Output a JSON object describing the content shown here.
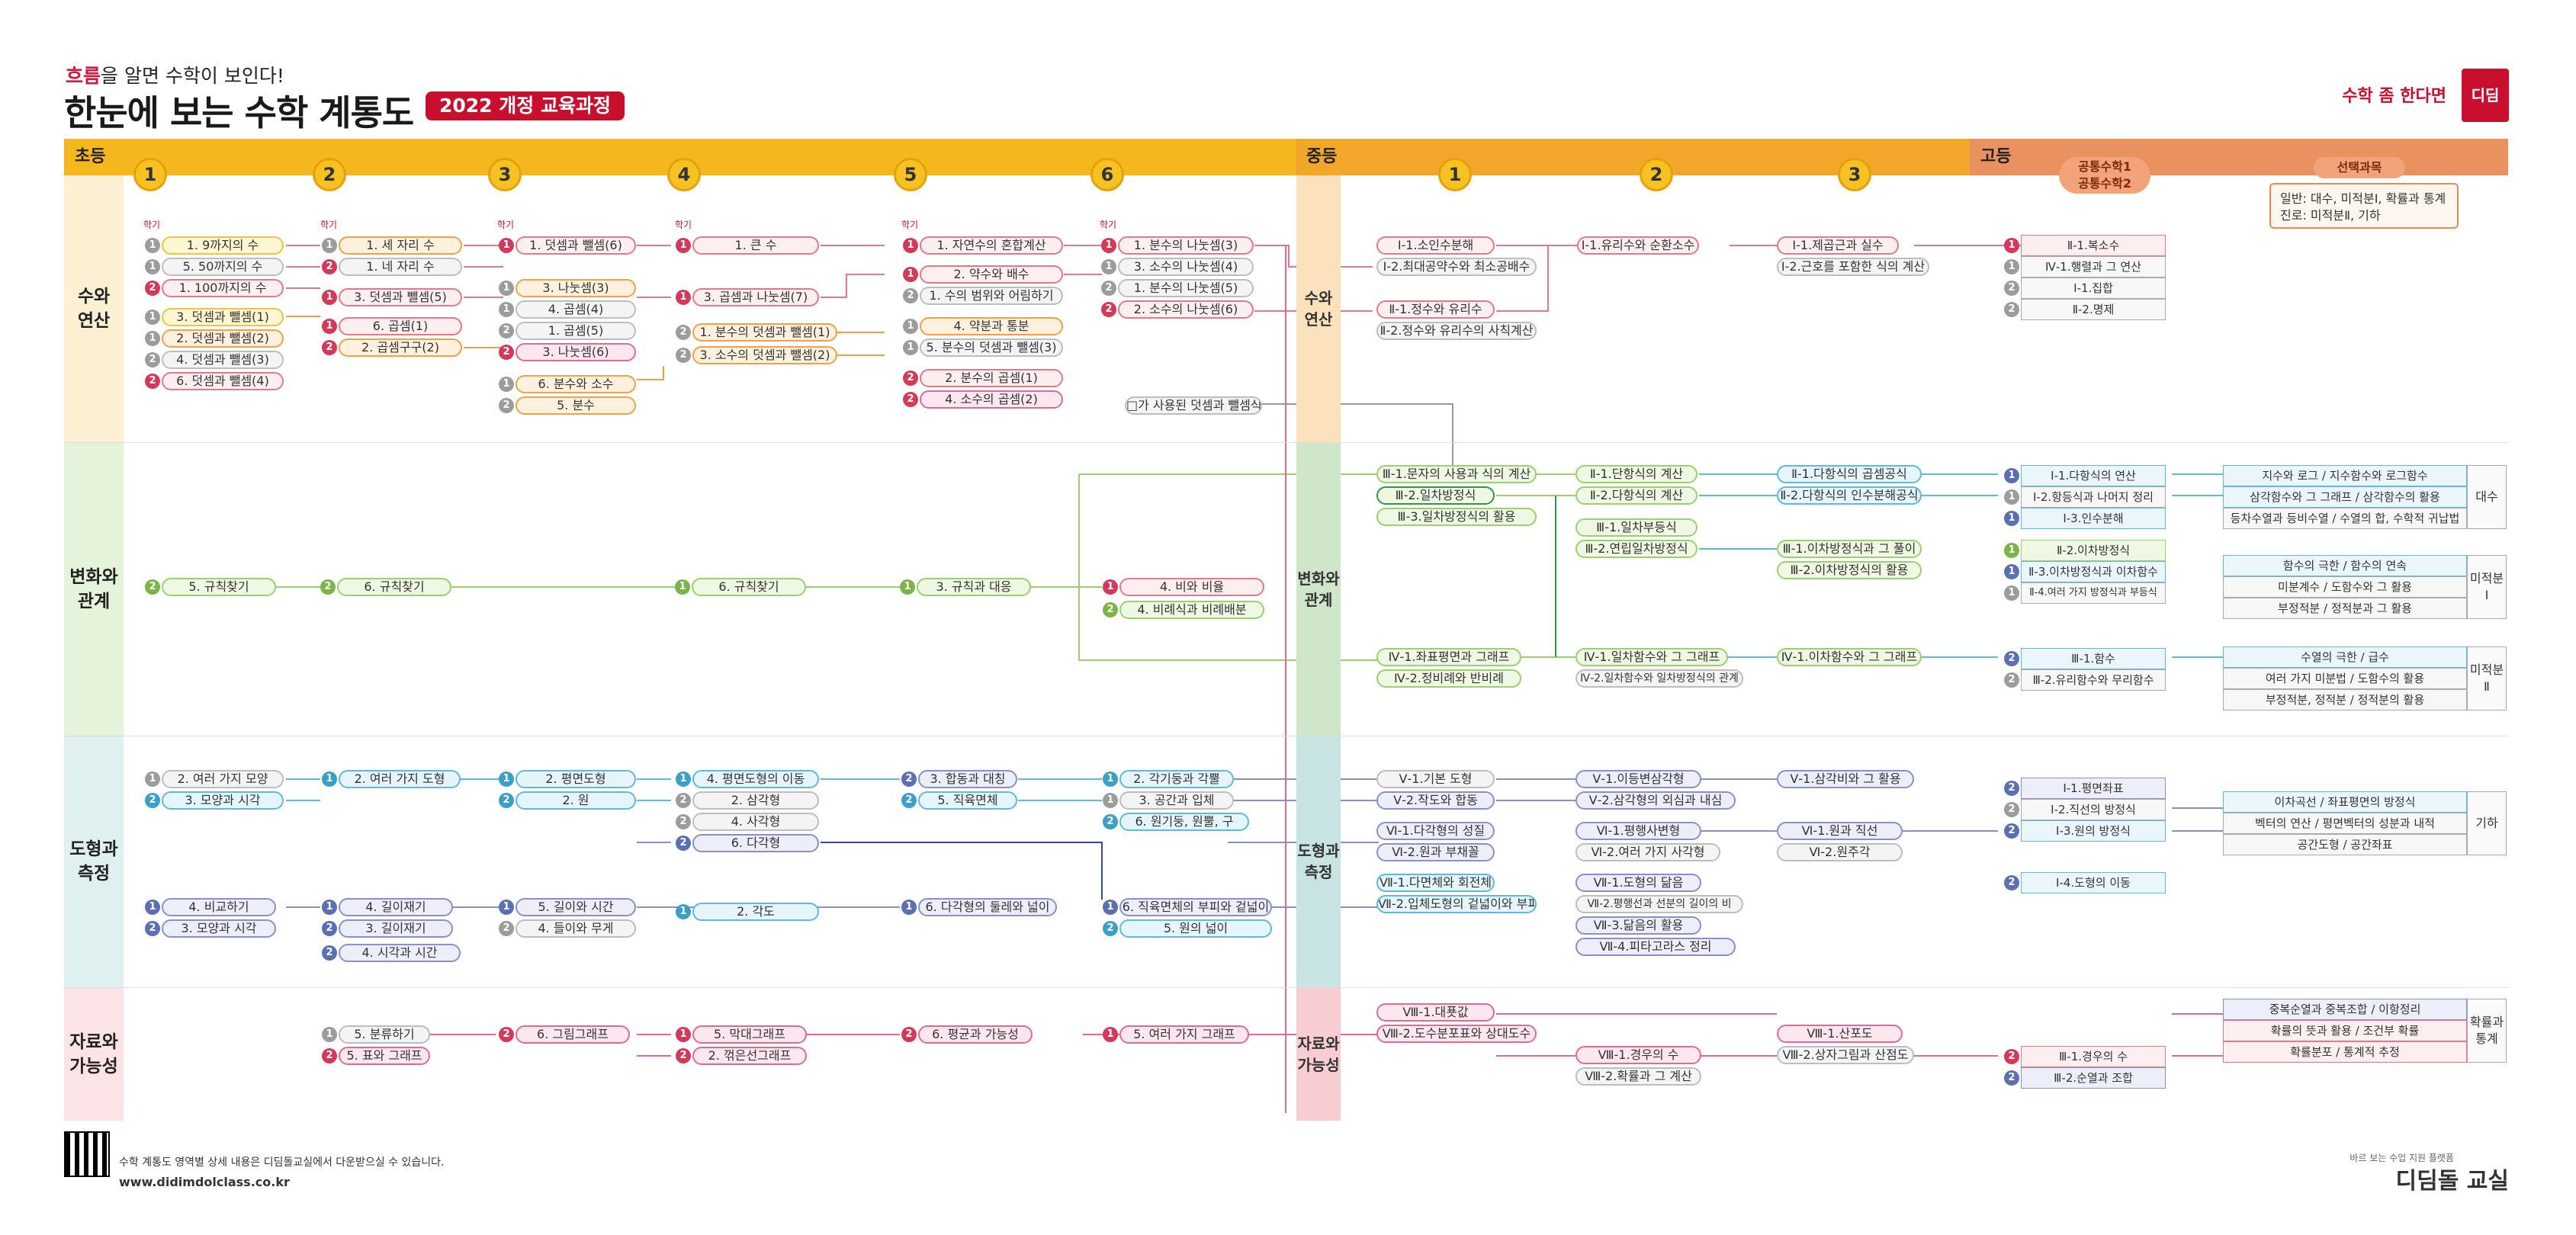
{
  "header": {
    "slogan_hl": "흐름",
    "slogan_rest": "을 알면 수학이 보인다!",
    "title": "한눈에 보는 수학 계통도",
    "badge": "2022 개정 교육과정",
    "brand_tag": "수학 좀 한다면",
    "brand_mark": "디딤"
  },
  "bands": {
    "elementary": "초등",
    "middle": "중등",
    "high": "고등",
    "elem_grades": [
      "1",
      "2",
      "3",
      "4",
      "5",
      "6"
    ],
    "mid_grades": [
      "1",
      "2",
      "3"
    ],
    "hs_course": [
      "공통수학1",
      "공통수학2"
    ],
    "elective_title": "선택과목",
    "elective_line1": "일반: 대수, 미적분Ⅰ, 확률과 통계",
    "elective_line2": "진로: 미적분Ⅱ, 기하",
    "semester_tag": "학기"
  },
  "areas": {
    "number": "수와\n연산",
    "relation": "변화와\n관계",
    "geometry": "도형과\n측정",
    "data": "자료와\n가능성"
  },
  "mid_areas": {
    "number": "수와\n연산",
    "relation": "변화와\n관계",
    "geometry": "도형과\n측정",
    "data": "자료와\n가능성"
  },
  "nodes": {
    "g1_num": [
      "1. 9까지의 수",
      "5. 50까지의 수",
      "1. 100까지의 수",
      "3. 덧셈과 뺄셈(1)",
      "2. 덧셈과 뺄셈(2)",
      "4. 덧셈과 뺄셈(3)",
      "6. 덧셈과 뺄셈(4)"
    ],
    "g2_num": [
      "1. 세 자리 수",
      "1. 네 자리 수",
      "3. 덧셈과 뺄셈(5)",
      "6. 곱셈(1)",
      "2. 곱셈구구(2)"
    ],
    "g3_num": [
      "1. 덧셈과 뺄셈(6)",
      "3. 나눗셈(3)",
      "4. 곱셈(4)",
      "1. 곱셈(5)",
      "3. 나눗셈(6)",
      "6. 분수와 소수",
      "5. 분수"
    ],
    "g4_num": [
      "1. 큰 수",
      "3. 곱셈과 나눗셈(7)",
      "1. 분수의 덧셈과 뺄셈(1)",
      "3. 소수의 덧셈과 뺄셈(2)"
    ],
    "g5_num": [
      "1. 자연수의 혼합계산",
      "2. 약수와 배수",
      "1. 수의 범위와 어림하기",
      "4. 약분과 통분",
      "5. 분수의 덧셈과 뺄셈(3)",
      "2. 분수의 곱셈(1)",
      "4. 소수의 곱셈(2)"
    ],
    "g6_num": [
      "1. 분수의 나눗셈(3)",
      "3. 소수의 나눗셈(4)",
      "1. 분수의 나눗셈(5)",
      "2. 소수의 나눗셈(6)"
    ],
    "note_box": "□가 사용된 덧셈과 뺄셈식",
    "m1_num": [
      "Ⅰ-1.소인수분해",
      "Ⅰ-2.최대공약수와 최소공배수",
      "Ⅱ-1.정수와 유리수",
      "Ⅱ-2.정수와 유리수의 사칙계산"
    ],
    "m2_num": [
      "Ⅰ-1.유리수와 순환소수"
    ],
    "m3_num": [
      "Ⅰ-1.제곱근과 실수",
      "Ⅰ-2.근호를 포함한 식의 계산"
    ],
    "h_num": [
      "Ⅱ-1.복소수",
      "Ⅳ-1.행렬과 그 연산",
      "Ⅰ-1.집합",
      "Ⅱ-2.명제"
    ],
    "rel_elem": [
      "5. 규칙찾기",
      "6. 규칙찾기",
      "6. 규칙찾기",
      "3. 규칙과 대응",
      "4. 비와 비율",
      "4. 비례식과 비례배분"
    ],
    "m1_rel": [
      "Ⅲ-1.문자의 사용과 식의 계산",
      "Ⅲ-2.일차방정식",
      "Ⅲ-3.일차방정식의 활용",
      "Ⅳ-1.좌표평면과 그래프",
      "Ⅳ-2.정비례와 반비례"
    ],
    "m2_rel": [
      "Ⅱ-1.단항식의 계산",
      "Ⅱ-2.다항식의 계산",
      "Ⅲ-1.일차부등식",
      "Ⅲ-2.연립일차방정식",
      "Ⅳ-1.일차함수와 그 그래프",
      "Ⅳ-2.일차함수와 일차방정식의 관계"
    ],
    "m3_rel": [
      "Ⅱ-1.다항식의 곱셈공식",
      "Ⅱ-2.다항식의 인수분해공식",
      "Ⅲ-1.이차방정식과 그 풀이",
      "Ⅲ-2.이차방정식의 활용",
      "Ⅳ-1.이차함수와 그 그래프"
    ],
    "h_rel": [
      "Ⅰ-1.다항식의 연산",
      "Ⅰ-2.항등식과 나머지 정리",
      "Ⅰ-3.인수분해",
      "Ⅱ-2.이차방정식",
      "Ⅱ-3.이차방정식과 이차함수",
      "Ⅱ-4.여러 가지 방정식과 부등식",
      "Ⅲ-1.함수",
      "Ⅲ-2.유리함수와 무리함수"
    ],
    "el_rel": [
      "지수와 로그 / 지수함수와 로그함수",
      "삼각함수와 그 그래프 / 삼각함수의 활용",
      "등차수열과 등비수열 / 수열의 합, 수학적 귀납법",
      "함수의 극한 / 함수의 연속",
      "미분계수 / 도함수와 그 활용",
      "부정적분 / 정적분과 그 활용",
      "수열의 극한 / 급수",
      "여러 가지 미분법 / 도함수의 활용",
      "부정적분, 정적분 / 정적분의 활용"
    ],
    "el_side": [
      "대수",
      "미적분\nⅠ",
      "미적분\nⅡ"
    ],
    "geo_elem": [
      "2. 여러 가지 모양",
      "3. 모양과 시각",
      "2. 여러 가지 도형",
      "2. 평면도형",
      "2. 원",
      "4. 평면도형의 이동",
      "2. 삼각형",
      "4. 사각형",
      "6. 다각형",
      "3. 합동과 대칭",
      "5. 직육면체",
      "2. 각기둥과 각뿔",
      "3. 공간과 입체",
      "6. 원기둥, 원뿔, 구",
      "4. 비교하기",
      "3. 모양과 시각",
      "4. 길이재기",
      "3. 길이재기",
      "4. 시각과 시간",
      "5. 길이와 시간",
      "4. 들이와 무게",
      "2. 각도",
      "6. 다각형의 둘레와 넓이",
      "6. 직육면체의 부피와 겉넓이",
      "5. 원의 넓이"
    ],
    "m_geo": [
      "Ⅴ-1.기본 도형",
      "Ⅴ-2.작도와 합동",
      "Ⅵ-1.다각형의 성질",
      "Ⅵ-2.원과 부채꼴",
      "Ⅶ-1.다면체와 회전체",
      "Ⅶ-2.입체도형의 겉넓이와 부피"
    ],
    "m2_geo": [
      "Ⅴ-1.이등변삼각형",
      "Ⅴ-2.삼각형의 외심과 내심",
      "Ⅵ-1.평행사변형",
      "Ⅵ-2.여러 가지 사각형",
      "Ⅶ-1.도형의 닮음",
      "Ⅶ-2.평행선과 선분의 길이의 비",
      "Ⅶ-3.닮음의 활용",
      "Ⅶ-4.피타고라스 정리"
    ],
    "m3_geo": [
      "Ⅴ-1.삼각비와 그 활용",
      "Ⅵ-1.원과 직선",
      "Ⅵ-2.원주각"
    ],
    "h_geo": [
      "Ⅰ-1.평면좌표",
      "Ⅰ-2.직선의 방정식",
      "Ⅰ-3.원의 방정식",
      "Ⅰ-4.도형의 이동"
    ],
    "el_geo": [
      "이차곡선 / 좌표평면의 방정식",
      "벡터의 연산 / 평면벡터의 성분과 내적",
      "공간도형 / 공간좌표"
    ],
    "el_geo_side": "기하",
    "data_elem": [
      "5. 분류하기",
      "5. 표와 그래프",
      "6. 그림그래프",
      "5. 막대그래프",
      "2. 꺾은선그래프",
      "6. 평균과 가능성",
      "5. 여러 가지 그래프"
    ],
    "m1_data": [
      "Ⅷ-1.대푯값",
      "Ⅷ-2.도수분포표와 상대도수"
    ],
    "m2_data": [
      "Ⅷ-1.경우의 수",
      "Ⅷ-2.확률과 그 계산"
    ],
    "m3_data": [
      "Ⅷ-1.산포도",
      "Ⅷ-2.상자그림과 산점도"
    ],
    "h_data": [
      "Ⅲ-1.경우의 수",
      "Ⅲ-2.순열과 조합"
    ],
    "el_data": [
      "중복순열과 중복조합 / 이항정리",
      "확률의 뜻과 활용 / 조건부 확률",
      "확률분포 / 통계적 추정"
    ],
    "el_data_side": "확률과\n통계"
  },
  "footer": {
    "note": "수학 계통도 영역별 상세 내용은 디딤돌교실에서 다운받으실 수 있습니다.",
    "url": "www.didimdolclass.co.kr",
    "logo": "디딤돌 교실",
    "logo_sub": "바르 보는 수업 지원 플랫폼"
  }
}
